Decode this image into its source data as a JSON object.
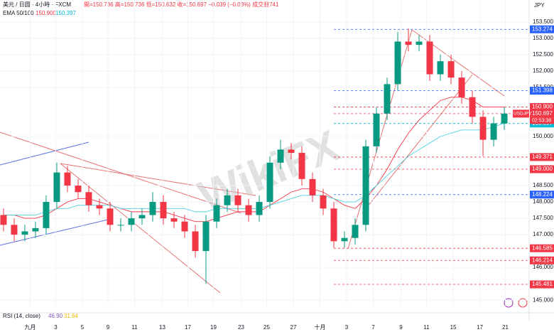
{
  "chart_data": {
    "type": "candlestick",
    "header": {
      "symbol": "美元 / 日圆 · 4小時 · FXCM",
      "ohlc": "開=150.736 高=150.736 低=150.632 收=150.697 −0.039 (−0.03%) 成交量741",
      "ema_name": "EMA 50/100",
      "ema50_text": "150.900",
      "ema100_text": "150.397"
    },
    "currency": "JPY",
    "watermark": "WikiFX",
    "rsi_label": "RSI (14, close)",
    "rsi_values": [
      "46.90",
      "31.64"
    ],
    "up_color": "#089981",
    "down_color": "#f23645",
    "series": {
      "open": [
        147.6,
        147.3,
        147.0,
        147.1,
        147.2,
        148.0,
        148.9,
        148.5,
        148.3,
        147.9,
        147.8,
        147.3,
        147.3,
        147.5,
        147.6,
        148.0,
        147.5,
        147.4,
        147.1,
        146.5,
        147.4,
        147.9,
        148.2,
        147.9,
        147.6,
        148.0,
        149.2,
        149.6,
        149.5,
        148.7,
        148.2,
        147.8,
        146.8,
        146.9,
        147.3,
        149.7,
        150.7,
        151.6,
        152.9,
        152.8,
        152.9,
        151.9,
        152.3,
        151.8,
        151.2,
        150.6,
        149.9,
        150.4
      ],
      "high": [
        147.8,
        147.5,
        147.3,
        147.4,
        148.2,
        149.2,
        149.1,
        148.7,
        148.5,
        148.1,
        148.0,
        147.5,
        147.7,
        147.8,
        148.3,
        148.2,
        147.7,
        147.6,
        147.3,
        147.6,
        148.1,
        148.4,
        148.4,
        148.1,
        148.2,
        149.4,
        149.9,
        149.8,
        149.7,
        148.9,
        148.4,
        148.0,
        147.1,
        147.5,
        149.9,
        150.9,
        151.8,
        153.2,
        153.3,
        153.1,
        153.1,
        152.5,
        152.5,
        152.0,
        151.4,
        150.8,
        150.6,
        150.9
      ],
      "low": [
        147.1,
        146.8,
        146.8,
        146.9,
        147.0,
        147.8,
        148.3,
        148.1,
        147.7,
        147.6,
        147.1,
        147.1,
        147.1,
        147.3,
        147.4,
        147.3,
        147.2,
        146.9,
        146.3,
        145.5,
        147.2,
        147.7,
        147.7,
        147.4,
        147.4,
        147.8,
        149.0,
        149.3,
        148.5,
        148.0,
        147.6,
        146.6,
        146.6,
        146.7,
        147.1,
        149.5,
        150.5,
        151.4,
        152.6,
        152.6,
        151.7,
        151.7,
        151.6,
        151.0,
        150.4,
        149.4,
        149.7,
        150.2
      ],
      "close": [
        147.3,
        147.0,
        147.1,
        147.2,
        148.0,
        148.9,
        148.5,
        148.3,
        147.9,
        147.8,
        147.3,
        147.3,
        147.5,
        147.6,
        148.0,
        147.5,
        147.4,
        147.1,
        146.5,
        147.4,
        147.9,
        148.2,
        147.9,
        147.6,
        148.0,
        149.2,
        149.6,
        149.5,
        148.7,
        148.2,
        147.8,
        146.8,
        146.9,
        147.3,
        149.7,
        150.7,
        151.6,
        152.9,
        152.8,
        152.9,
        151.9,
        152.3,
        151.8,
        151.2,
        150.6,
        149.9,
        150.4,
        150.7
      ]
    },
    "ema": [
      {
        "name": "EMA 50",
        "color": "#f23645",
        "values": [
          147.6,
          147.6,
          147.5,
          147.5,
          147.6,
          147.8,
          148.0,
          148.1,
          148.1,
          148.0,
          147.9,
          147.8,
          147.7,
          147.7,
          147.7,
          147.7,
          147.6,
          147.5,
          147.4,
          147.4,
          147.5,
          147.6,
          147.7,
          147.7,
          147.7,
          147.9,
          148.1,
          148.3,
          148.4,
          148.4,
          148.3,
          148.1,
          147.9,
          147.8,
          148.1,
          148.5,
          149.0,
          149.6,
          150.1,
          150.5,
          150.8,
          151.1,
          151.2,
          151.2,
          151.1,
          150.9,
          150.9,
          150.9
        ]
      },
      {
        "name": "EMA 100",
        "color": "#4dd0e1",
        "values": [
          147.6,
          147.6,
          147.6,
          147.6,
          147.7,
          147.8,
          147.8,
          147.9,
          147.9,
          147.9,
          147.9,
          147.8,
          147.8,
          147.8,
          147.8,
          147.8,
          147.8,
          147.8,
          147.7,
          147.7,
          147.8,
          147.8,
          147.8,
          147.8,
          147.8,
          147.9,
          148.0,
          148.1,
          148.2,
          148.2,
          148.2,
          148.1,
          148.0,
          148.0,
          148.2,
          148.5,
          148.8,
          149.1,
          149.4,
          149.6,
          149.8,
          150.0,
          150.1,
          150.2,
          150.2,
          150.2,
          150.3,
          150.4
        ]
      }
    ],
    "xlim": [
      -0.33,
      49.33
    ],
    "xticks": [
      {
        "value": 2.5,
        "label": "九月"
      },
      {
        "value": 4.9,
        "label": "3"
      },
      {
        "value": 7.4,
        "label": "5"
      },
      {
        "value": 9.8,
        "label": "9"
      },
      {
        "value": 12.3,
        "label": "11"
      },
      {
        "value": 14.9,
        "label": "13"
      },
      {
        "value": 17.3,
        "label": "17"
      },
      {
        "value": 19.7,
        "label": "19"
      },
      {
        "value": 22.3,
        "label": "23"
      },
      {
        "value": 24.7,
        "label": "25"
      },
      {
        "value": 27.2,
        "label": "27"
      },
      {
        "value": 29.7,
        "label": "十月"
      },
      {
        "value": 32.2,
        "label": "3"
      },
      {
        "value": 34.7,
        "label": "7"
      },
      {
        "value": 37.3,
        "label": "9"
      },
      {
        "value": 39.7,
        "label": "11"
      },
      {
        "value": 42.2,
        "label": "15"
      },
      {
        "value": 44.7,
        "label": "17"
      },
      {
        "value": 47.1,
        "label": "21"
      }
    ],
    "ylim": [
      144.83,
      154.17
    ],
    "yticks": [
      {
        "value": 153.5,
        "label": "153.500"
      },
      {
        "value": 153,
        "label": "153.000"
      },
      {
        "value": 152.5,
        "label": "152.500"
      },
      {
        "value": 152,
        "label": "152.000"
      },
      {
        "value": 151.5,
        "label": "151.500"
      },
      {
        "value": 150,
        "label": "150.000"
      },
      {
        "value": 148.5,
        "label": "148.500"
      },
      {
        "value": 148,
        "label": "148.000"
      },
      {
        "value": 147.5,
        "label": "147.500"
      },
      {
        "value": 147,
        "label": "147.000"
      },
      {
        "value": 146,
        "label": "146.000"
      },
      {
        "value": 145,
        "label": "145.000"
      }
    ],
    "levels": [
      {
        "value": 153.274,
        "label": "153.274",
        "color": "#2962ff"
      },
      {
        "value": 151.398,
        "label": "151.398",
        "color": "#2962ff"
      },
      {
        "value": 150.9,
        "label": "150.900",
        "color": "#f23645"
      },
      {
        "value": 150.697,
        "label": "150.697",
        "color": "#f23645"
      },
      {
        "value": 150.397,
        "label": "150.397",
        "color": "#00bcd4"
      },
      {
        "value": 149.371,
        "label": "149.371",
        "color": "#f23645"
      },
      {
        "value": 149.0,
        "label": "149.000",
        "color": "#f23645"
      },
      {
        "value": 148.224,
        "label": "148.224",
        "color": "#2962ff"
      },
      {
        "value": 146.585,
        "label": "146.585",
        "color": "#f23645"
      },
      {
        "value": 146.214,
        "label": "146.214",
        "color": "#f23645"
      },
      {
        "value": 145.481,
        "label": "145.481",
        "color": "#f23645"
      }
    ],
    "current": {
      "symbol": "USDJPY",
      "countdown": "02:53:38"
    }
  }
}
